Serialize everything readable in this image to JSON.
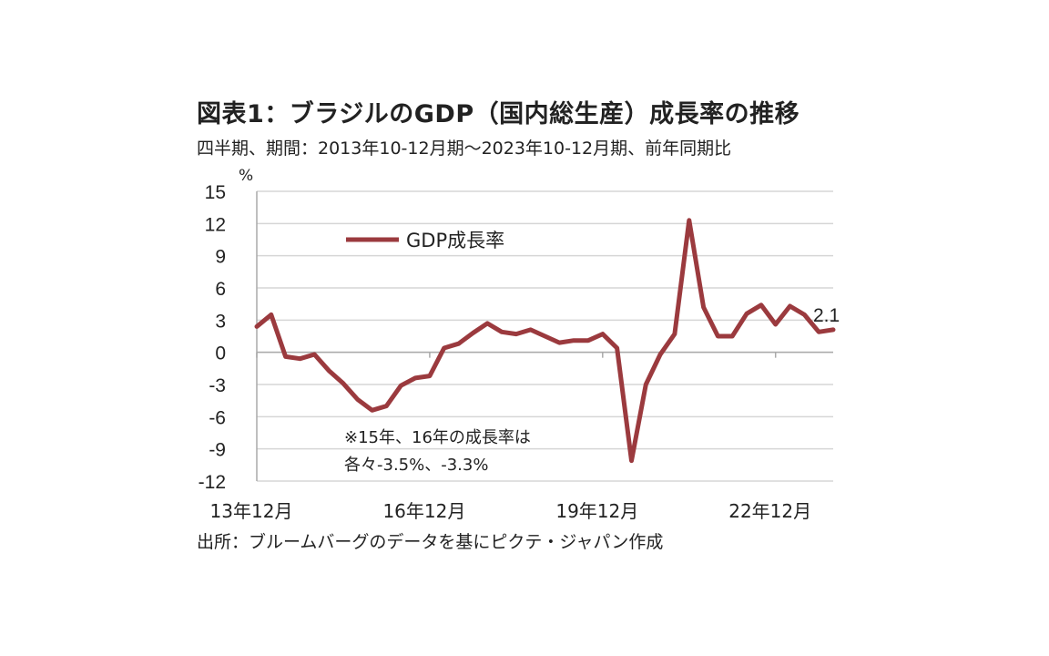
{
  "title": "図表1：ブラジルのGDP（国内総生産）成長率の推移",
  "subtitle": "四半期、期間：2013年10-12月期～2023年10-12月期、前年同期比",
  "source": "出所：ブルームバーグのデータを基にピクテ・ジャパン作成",
  "chart_data": {
    "type": "line",
    "ylabel": "%",
    "ylim": [
      -12,
      15
    ],
    "yticks": [
      "15",
      "12",
      "9",
      "6",
      "3",
      "0",
      "-3",
      "-6",
      "-9",
      "-12"
    ],
    "xticks": [
      "13年12月",
      "16年12月",
      "19年12月",
      "22年12月"
    ],
    "grid": true,
    "legend_position": "top-left",
    "end_label": "2.1",
    "annotation_lines": [
      "※15年、16年の成長率は",
      "各々-3.5%、-3.3%"
    ],
    "series": [
      {
        "name": "GDP成長率",
        "color": "#9b3a3e",
        "values": [
          2.4,
          3.5,
          -0.4,
          -0.6,
          -0.2,
          -1.7,
          -2.9,
          -4.4,
          -5.4,
          -5.0,
          -3.1,
          -2.4,
          -2.2,
          0.4,
          0.8,
          1.8,
          2.7,
          1.9,
          1.7,
          2.1,
          1.5,
          0.9,
          1.1,
          1.1,
          1.7,
          0.4,
          -10.1,
          -3.0,
          -0.2,
          1.7,
          12.3,
          4.2,
          1.5,
          1.5,
          3.6,
          4.4,
          2.6,
          4.3,
          3.5,
          1.9,
          2.1
        ]
      }
    ]
  }
}
